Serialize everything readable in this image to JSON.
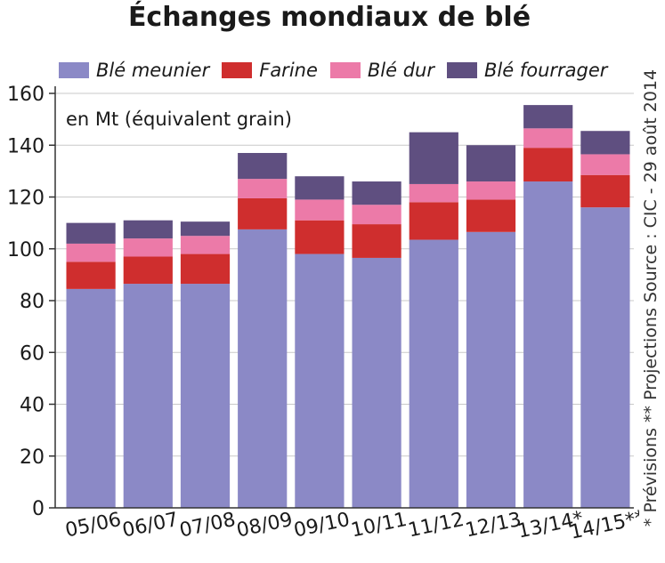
{
  "chart_data": {
    "type": "bar",
    "stacked": true,
    "title": "Échanges mondiaux de blé",
    "unit_label": "en Mt (équivalent grain)",
    "categories": [
      "05/06",
      "06/07",
      "07/08",
      "08/09",
      "09/10",
      "10/11",
      "11/12",
      "12/13",
      "13/14*",
      "14/15**"
    ],
    "series": [
      {
        "name": "Blé meunier",
        "color": "#8b89c6",
        "values": [
          84.5,
          86.5,
          86.5,
          107.5,
          98,
          96.5,
          103.5,
          106.5,
          126,
          116
        ]
      },
      {
        "name": "Farine",
        "color": "#cf2e2e",
        "values": [
          10.5,
          10.5,
          11.5,
          12,
          13,
          13,
          14.5,
          12.5,
          13,
          12.5
        ]
      },
      {
        "name": "Blé dur",
        "color": "#ec7aa8",
        "values": [
          7,
          7,
          7,
          7.5,
          8,
          7.5,
          7,
          7,
          7.5,
          8
        ]
      },
      {
        "name": "Blé fourrager",
        "color": "#5f4f80",
        "values": [
          8,
          7,
          5.5,
          10,
          9,
          9,
          20,
          14,
          9,
          9
        ]
      }
    ],
    "ylim": [
      0,
      160
    ],
    "yticks": [
      0,
      20,
      40,
      60,
      80,
      100,
      120,
      140,
      160
    ],
    "grid": true,
    "legend_position": "top",
    "side_note": "* Prévisions ** Projections   Source : CIC - 29 août 2014"
  }
}
